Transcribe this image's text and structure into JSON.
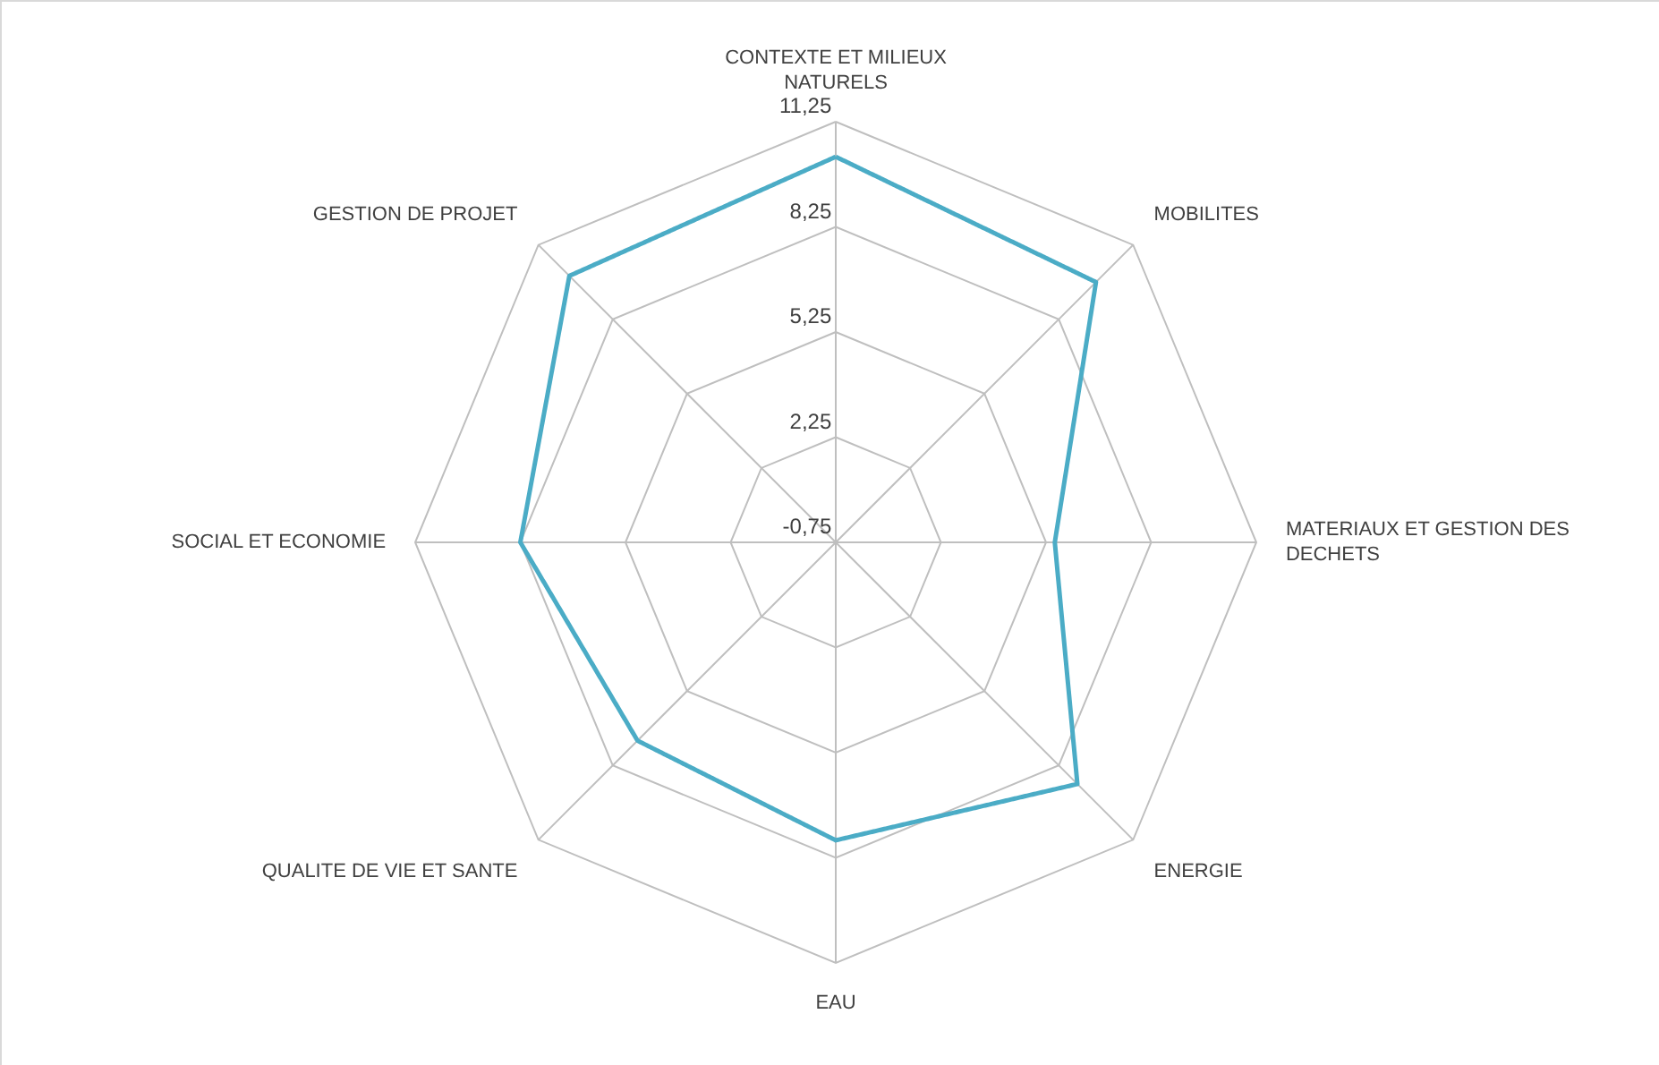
{
  "chart_data": {
    "type": "radar",
    "categories": [
      "CONTEXTE ET MILIEUX NATURELS",
      "MOBILITES",
      "MATERIAUX ET GESTION DES DECHETS",
      "ENERGIE",
      "EAU",
      "QUALITE DE VIE ET SANTE",
      "SOCIAL ET ECONOMIE",
      "GESTION DE PROJET"
    ],
    "series": [
      {
        "color": "#4bacc6",
        "values": [
          10.25,
          9.75,
          5.5,
          9,
          7.75,
          7.25,
          8.25,
          10
        ]
      }
    ],
    "ylim": [
      -0.75,
      11.25
    ],
    "yticks": [
      {
        "value": -0.75,
        "label": "-0,75"
      },
      {
        "value": 2.25,
        "label": "2,25"
      },
      {
        "value": 5.25,
        "label": "5,25"
      },
      {
        "value": 8.25,
        "label": "8,25"
      },
      {
        "value": 11.25,
        "label": "11,25"
      }
    ],
    "grid": true,
    "line_style": "solid",
    "marker": "none"
  }
}
